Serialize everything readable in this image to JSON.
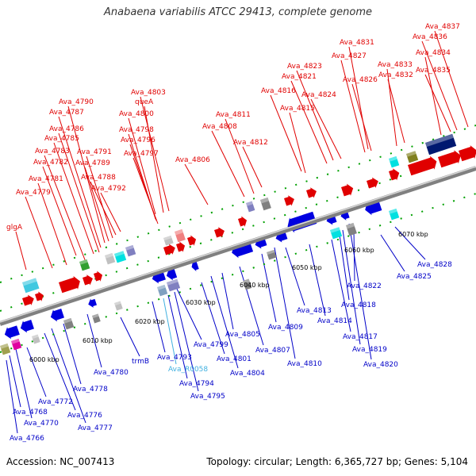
{
  "title": "Anabaena variabilis ATCC 29413, complete genome",
  "footer": {
    "accession": "Accession: NC_007413",
    "topology": "Topology: circular; Length: 6,365,727 bp; Genes: 5,104"
  },
  "colors": {
    "forward_label": "#e00000",
    "reverse_label": "#0000c8",
    "rna_label": "#40b0e0",
    "ruler": "#909090",
    "tick": "#00a000"
  },
  "ruler_ticks": [
    {
      "label": "6000 kbp",
      "kbp": 6000
    },
    {
      "label": "6010 kbp",
      "kbp": 6010
    },
    {
      "label": "6020 kbp",
      "kbp": 6020
    },
    {
      "label": "6030 kbp",
      "kbp": 6030
    },
    {
      "label": "6040 kbp",
      "kbp": 6040
    },
    {
      "label": "6050 kbp",
      "kbp": 6050
    },
    {
      "label": "6060 kbp",
      "kbp": 6060
    },
    {
      "label": "6070 kbp",
      "kbp": 6070
    }
  ],
  "forward_labels": [
    "glgA",
    "Ava_4779",
    "Ava_4781",
    "Ava_4782",
    "Ava_4783",
    "Ava_4785",
    "Ava_4786",
    "Ava_4787",
    "Ava_4790",
    "Ava_4789",
    "Ava_4791",
    "Ava_4788",
    "Ava_4792",
    "Ava_4797",
    "Ava_4796",
    "Ava_4798",
    "Ava_4800",
    "queA",
    "Ava_4803",
    "Ava_4806",
    "Ava_4808",
    "Ava_4811",
    "Ava_4812",
    "Ava_4815",
    "Ava_4816",
    "Ava_4821",
    "Ava_4823",
    "Ava_4824",
    "Ava_4827",
    "Ava_4826",
    "Ava_4831",
    "Ava_4832",
    "Ava_4833",
    "Ava_4834",
    "Ava_4835",
    "Ava_4836",
    "Ava_4837"
  ],
  "reverse_labels": [
    "Ava_4766",
    "Ava_4768",
    "Ava_4770",
    "Ava_4772",
    "Ava_4776",
    "Ava_4777",
    "Ava_4778",
    "Ava_4780",
    "trmB",
    "Ava_4793",
    "Ava_R0058",
    "Ava_4794",
    "Ava_4795",
    "Ava_4799",
    "Ava_4801",
    "Ava_4804",
    "Ava_4805",
    "Ava_4807",
    "Ava_4809",
    "Ava_4810",
    "Ava_4813",
    "Ava_4814",
    "Ava_4817",
    "Ava_4818",
    "Ava_4819",
    "Ava_4820",
    "Ava_4822",
    "Ava_4825",
    "Ava_4828"
  ]
}
